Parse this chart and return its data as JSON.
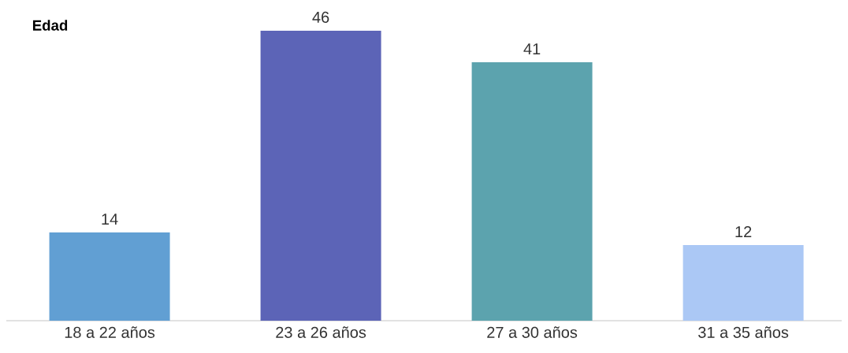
{
  "chart_data": {
    "type": "bar",
    "title": "Edad",
    "categories": [
      "18 a 22 años",
      "23 a 26 años",
      "27 a 30 años",
      "31 a 35 años"
    ],
    "values": [
      14,
      46,
      41,
      12
    ],
    "colors": [
      "#619fd3",
      "#5c64b7",
      "#5ca3ae",
      "#abc8f5"
    ],
    "data_labels": true
  }
}
